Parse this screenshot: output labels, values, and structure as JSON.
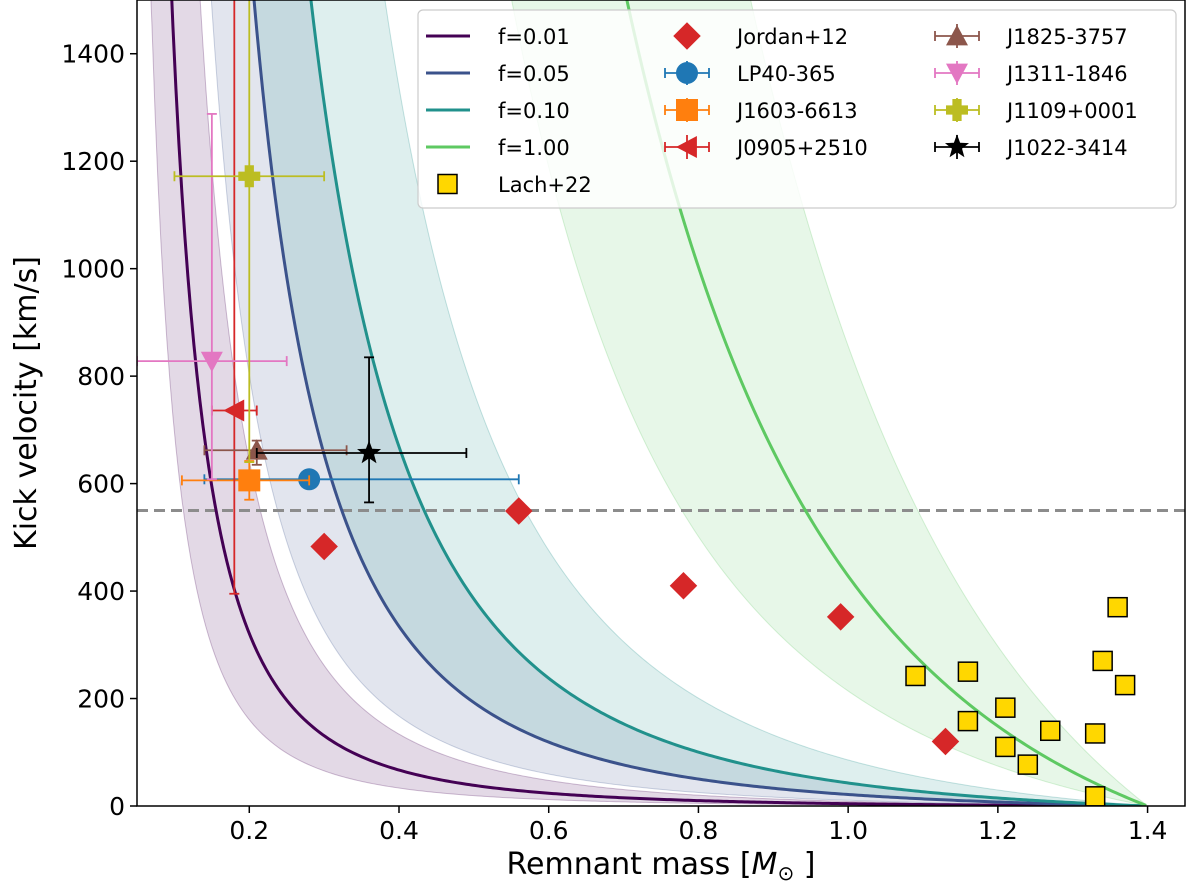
{
  "chart_data": {
    "type": "scatter",
    "title": "",
    "xlabel_prefix": "Remnant mass [",
    "xlabel_symbol": "M",
    "xlabel_sub": "⊙",
    "xlabel_suffix": " ]",
    "ylabel": "Kick velocity [km/s]",
    "xlim": [
      0.05,
      1.45
    ],
    "ylim": [
      0,
      1500
    ],
    "xticks": [
      0.2,
      0.4,
      0.6,
      0.8,
      1.0,
      1.2,
      1.4
    ],
    "xtick_labels": [
      "0.2",
      "0.4",
      "0.6",
      "0.8",
      "1.0",
      "1.2",
      "1.4"
    ],
    "yticks": [
      0,
      200,
      400,
      600,
      800,
      1000,
      1200,
      1400
    ],
    "ytick_labels": [
      "0",
      "200",
      "400",
      "600",
      "800",
      "1000",
      "1200",
      "1400"
    ],
    "reference_line": {
      "y": 550,
      "color": "#8c8c8c",
      "style": "dashed"
    },
    "curves": [
      {
        "label": "f=0.01",
        "f": 0.01,
        "color": "#440154"
      },
      {
        "label": "f=0.05",
        "f": 0.05,
        "color": "#3b528b"
      },
      {
        "label": "f=0.10",
        "f": 0.1,
        "color": "#21918c"
      },
      {
        "label": "f=1.00",
        "f": 1.0,
        "color": "#5ec962"
      }
    ],
    "curve_model": {
      "m_ch": 1.4,
      "k": 7.0,
      "band_low": 0.5,
      "band_high": 2.0
    },
    "jordan12": {
      "label": "Jordan+12",
      "color": "#d62728",
      "points": [
        [
          0.3,
          483
        ],
        [
          0.56,
          549
        ],
        [
          0.78,
          410
        ],
        [
          0.99,
          352
        ],
        [
          1.13,
          120
        ]
      ]
    },
    "lach22": {
      "label": "Lach+22",
      "color": "#ffd700",
      "points": [
        [
          1.09,
          242
        ],
        [
          1.16,
          250
        ],
        [
          1.16,
          158
        ],
        [
          1.21,
          183
        ],
        [
          1.21,
          110
        ],
        [
          1.24,
          77
        ],
        [
          1.27,
          140
        ],
        [
          1.33,
          135
        ],
        [
          1.33,
          18
        ],
        [
          1.34,
          270
        ],
        [
          1.36,
          370
        ],
        [
          1.37,
          225
        ]
      ]
    },
    "objects": [
      {
        "label": "LP40-365",
        "color": "#1f77b4",
        "marker": "circle",
        "x": 0.28,
        "y": 608,
        "xerr": [
          0.14,
          0.56
        ],
        "yerr": [
          603,
          613
        ]
      },
      {
        "label": "J1603-6613",
        "color": "#ff7f0e",
        "marker": "square",
        "x": 0.2,
        "y": 606,
        "xerr": [
          0.11,
          0.28
        ],
        "yerr": [
          570,
          642
        ]
      },
      {
        "label": "J0905+2510",
        "color": "#d62728",
        "marker": "triangle-left",
        "x": 0.18,
        "y": 736,
        "xerr": [
          0.15,
          0.21
        ],
        "yerr": [
          395,
          1500
        ]
      },
      {
        "label": "J1825-3757",
        "color": "#8c564b",
        "marker": "triangle-up",
        "x": 0.21,
        "y": 662,
        "xerr": [
          0.14,
          0.33
        ],
        "yerr": [
          635,
          680
        ]
      },
      {
        "label": "J1311-1846",
        "color": "#e377c2",
        "marker": "triangle-down",
        "x": 0.15,
        "y": 828,
        "xerr": [
          0.05,
          0.25
        ],
        "yerr": [
          608,
          1288
        ]
      },
      {
        "label": "J1109+0001",
        "color": "#bcbd22",
        "marker": "plus",
        "x": 0.2,
        "y": 1172,
        "xerr": [
          0.1,
          0.3
        ],
        "yerr": [
          640,
          1500
        ]
      },
      {
        "label": "J1022-3414",
        "color": "#000000",
        "marker": "star",
        "x": 0.36,
        "y": 657,
        "xerr": [
          0.21,
          0.49
        ],
        "yerr": [
          565,
          835
        ]
      }
    ],
    "legend_position": "upper right"
  }
}
